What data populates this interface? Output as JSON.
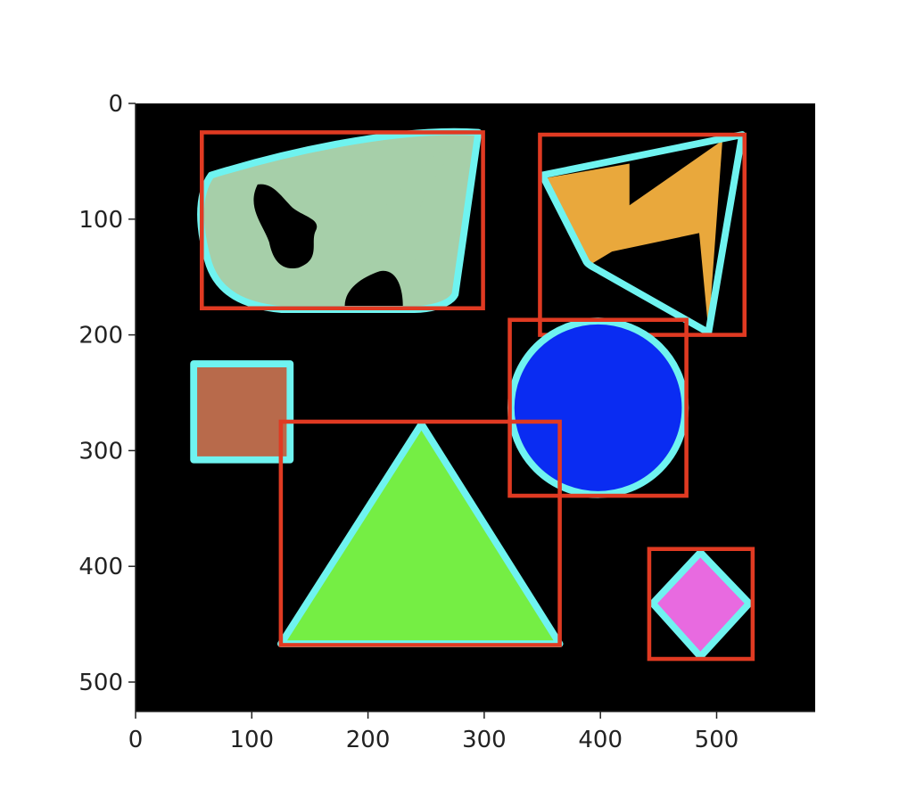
{
  "figure": {
    "background": "#ffffff",
    "image_background": "#000000",
    "image_size": {
      "width": 585,
      "height": 525
    },
    "axes": {
      "x_ticks": [
        "0",
        "100",
        "200",
        "300",
        "400",
        "500"
      ],
      "y_ticks": [
        "0",
        "100",
        "200",
        "300",
        "400",
        "500"
      ]
    }
  },
  "colors": {
    "contour": "#6ff3f0",
    "bounding_box": "#e03a22",
    "blob": "#a6cfa9",
    "lightning": "#e9a83c",
    "square": "#b86a4b",
    "circle": "#0a2cf2",
    "triangle": "#75ee44",
    "diamond": "#e86ae0"
  },
  "shapes": [
    {
      "name": "blob",
      "fill_key": "blob",
      "has_bounding_box": true
    },
    {
      "name": "lightning",
      "fill_key": "lightning",
      "has_bounding_box": true
    },
    {
      "name": "square",
      "fill_key": "square",
      "has_bounding_box": false
    },
    {
      "name": "circle",
      "fill_key": "circle",
      "has_bounding_box": true
    },
    {
      "name": "triangle",
      "fill_key": "triangle",
      "has_bounding_box": true
    },
    {
      "name": "diamond",
      "fill_key": "diamond",
      "has_bounding_box": true
    }
  ]
}
